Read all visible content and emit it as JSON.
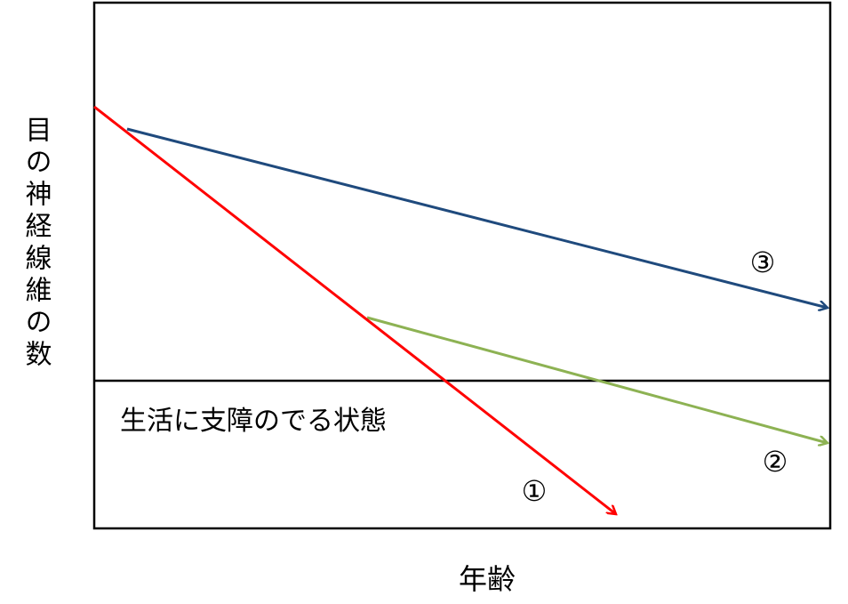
{
  "axes": {
    "y_label": "目の神経線維の数",
    "x_label": "年齢"
  },
  "region": {
    "label": "生活に支障のでる状態"
  },
  "lines": [
    {
      "label": "①"
    },
    {
      "label": "②"
    },
    {
      "label": "③"
    }
  ]
}
